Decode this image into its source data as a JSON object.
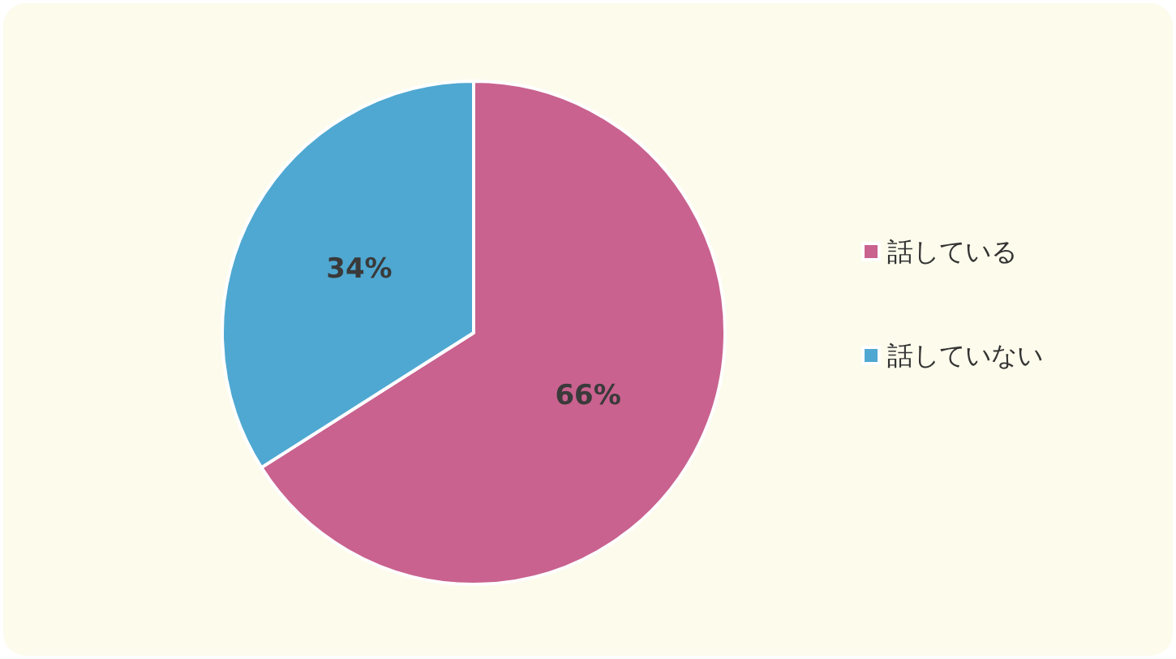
{
  "chart_data": {
    "type": "pie",
    "categories": [
      "話している",
      "話していない"
    ],
    "values": [
      66,
      34
    ],
    "colors": [
      "#c9628f",
      "#4fa8d1"
    ],
    "value_labels": [
      "66%",
      "34%"
    ],
    "legend": "right"
  }
}
